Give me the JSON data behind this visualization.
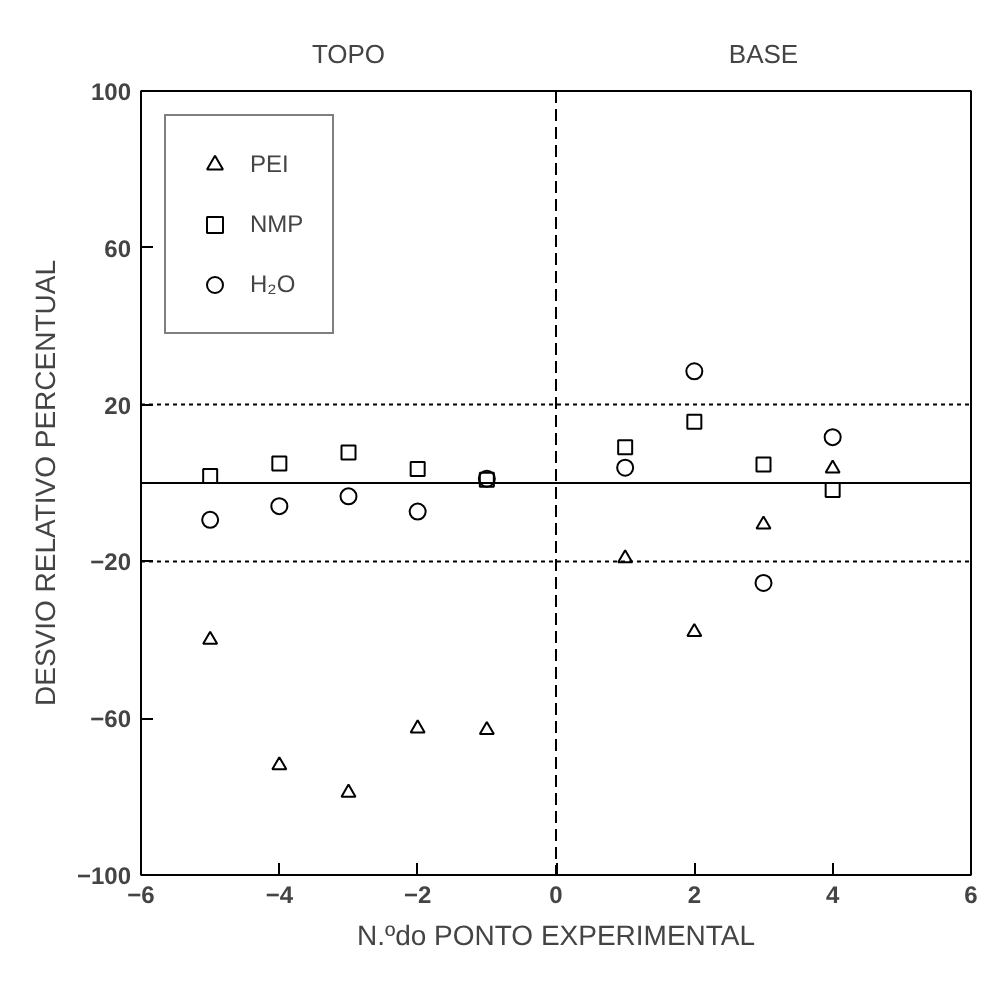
{
  "chart_data": {
    "type": "scatter",
    "xlabel": "N.ºdo PONTO EXPERIMENTAL",
    "ylabel": "DESVIO RELATIVO PERCENTUAL",
    "annotations": [
      "TOPO",
      "BASE"
    ],
    "x": [
      -5,
      -4,
      -3,
      -2,
      -1,
      1,
      2,
      3,
      4
    ],
    "series": [
      {
        "name": "PEI",
        "color": "#000000",
        "marker": "triangle",
        "values": [
          -40,
          -72,
          -79,
          -62.6,
          -63,
          -19.2,
          -38,
          -10.6,
          3.7
        ]
      },
      {
        "name": "NMP",
        "color": "#000000",
        "marker": "square",
        "values": [
          1.8,
          5,
          7.8,
          3.6,
          0.8,
          9.1,
          15.6,
          4.7,
          -1.8
        ]
      },
      {
        "name": "H₂O",
        "color": "#000000",
        "marker": "circle",
        "values": [
          -9.4,
          -5.9,
          -3.4,
          -7.3,
          1.1,
          3.9,
          28.5,
          -25.5,
          11.7
        ]
      }
    ],
    "xlim": [
      -6,
      6
    ],
    "xticks": [
      -6,
      -4,
      -2,
      0,
      2,
      4,
      6
    ],
    "ylim": [
      -100,
      100
    ],
    "yticks": [
      -100,
      -60,
      -20,
      20,
      60,
      100
    ],
    "ref_lines": [
      {
        "axis": "y",
        "value": 20,
        "line_style": "dotted"
      },
      {
        "axis": "y",
        "value": -20,
        "line_style": "dotted"
      },
      {
        "axis": "y",
        "value": 0,
        "line_style": "solid"
      },
      {
        "axis": "x",
        "value": 0,
        "line_style": "dashed"
      }
    ],
    "grid": false,
    "legend": "top left"
  }
}
